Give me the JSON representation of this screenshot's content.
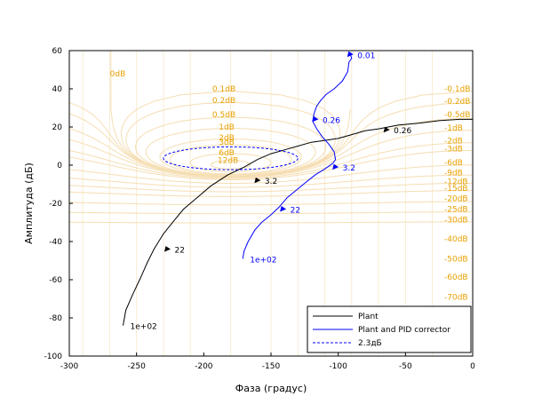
{
  "chart_data": {
    "type": "line",
    "xlabel": "Фаза (градус)",
    "ylabel": "Амплитуда (дБ)",
    "xlim": [
      -300,
      0
    ],
    "ylim": [
      -100,
      60
    ],
    "xticks": [
      -300,
      -250,
      -200,
      -150,
      -100,
      -50,
      0
    ],
    "yticks": [
      -100,
      -80,
      -60,
      -40,
      -20,
      0,
      20,
      40,
      60
    ],
    "grid_color": "#f5deb3",
    "iso_label_color": "#e8a000",
    "iso_labels_left": [
      "0dB",
      "0.1dB",
      "0.2dB",
      "0.5dB",
      "1dB",
      "2dB",
      "3dB",
      "6dB",
      "12dB"
    ],
    "iso_labels_right": [
      "-0.1dB",
      "-0.2dB",
      "-0.5dB",
      "-1dB",
      "-2dB",
      "-3dB",
      "-6dB",
      "-9dB",
      "-12dB",
      "-15dB",
      "-20dB",
      "-25dB",
      "-30dB",
      "-40dB",
      "-50dB",
      "-60dB",
      "-70dB"
    ],
    "series": [
      {
        "name": "Plant",
        "color": "#000000",
        "dash": false,
        "x": [
          -260,
          -258,
          -253,
          -247,
          -242,
          -237,
          -230,
          -222,
          -215,
          -205,
          -195,
          -182,
          -170,
          -160,
          -150,
          -140,
          -130,
          -120,
          -110,
          -100,
          -90,
          -80,
          -70,
          -55,
          -40,
          -25,
          -10,
          0
        ],
        "y": [
          -84,
          -76,
          -68,
          -59,
          -51,
          -44,
          -36,
          -29,
          -23,
          -17,
          -11,
          -5,
          -1,
          3,
          6,
          8,
          10,
          12,
          13,
          14,
          16,
          18,
          19,
          21,
          22,
          23.3,
          24,
          24
        ],
        "freq_labels": [
          {
            "text": "1e+02",
            "x": -260,
            "y": -84
          },
          {
            "text": "22",
            "x": -227,
            "y": -44
          },
          {
            "text": "3.2",
            "x": -160,
            "y": -8
          },
          {
            "text": "0.26",
            "x": -64,
            "y": 18.5
          }
        ]
      },
      {
        "name": "Plant and PID corrector",
        "color": "#0000ff",
        "dash": false,
        "x": [
          -171,
          -170,
          -167,
          -162,
          -157,
          -150,
          -144,
          -138,
          -131,
          -124,
          -117,
          -110,
          -104,
          -102,
          -103,
          -107,
          -112,
          -116,
          -119,
          -118,
          -116,
          -113,
          -109,
          -103,
          -97,
          -93,
          -92,
          -90,
          -91
        ],
        "y": [
          -49,
          -45,
          -40,
          -34,
          -30,
          -26,
          -22,
          -17,
          -13,
          -9,
          -5,
          -2,
          1,
          3,
          7,
          11,
          15,
          19,
          23,
          27,
          31,
          34,
          37,
          40,
          44,
          49,
          54,
          56,
          58
        ],
        "freq_labels": [
          {
            "text": "1e+02",
            "x": -171,
            "y": -49
          },
          {
            "text": "22",
            "x": -141,
            "y": -23
          },
          {
            "text": "3.2",
            "x": -102,
            "y": -1
          },
          {
            "text": "0.26",
            "x": -117,
            "y": 24
          },
          {
            "text": "0.01",
            "x": -91,
            "y": 58
          }
        ]
      },
      {
        "name": "2.3дБ",
        "color": "#0000ff",
        "dash": true,
        "ellipse": {
          "cx": -180,
          "cy": 3.6,
          "rx": 50,
          "ry": 6
        }
      }
    ],
    "legend": {
      "position": "bottom-right",
      "entries": [
        "Plant",
        "Plant and PID corrector",
        "2.3дБ"
      ]
    }
  }
}
